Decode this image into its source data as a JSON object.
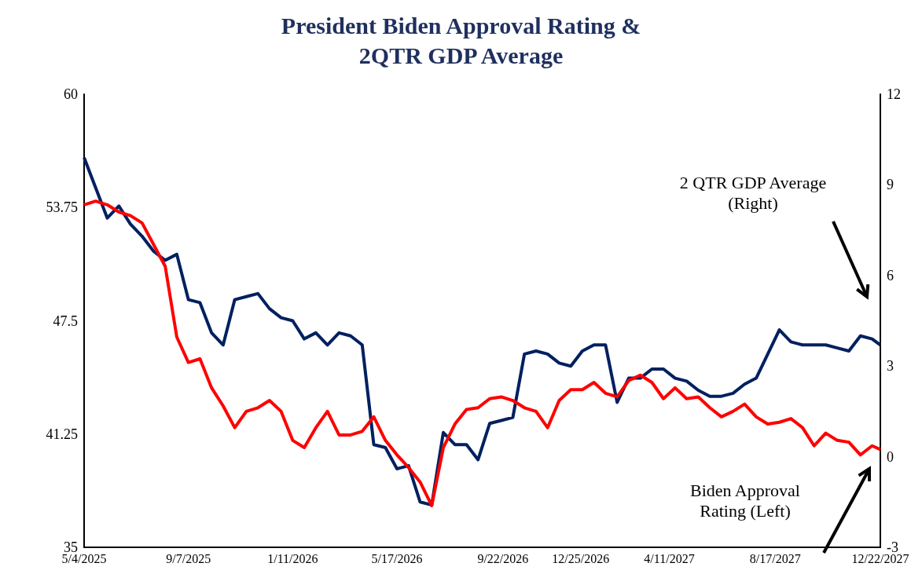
{
  "chart_data": {
    "type": "line",
    "title": "President Biden Approval Rating &\n2QTR GDP Average",
    "x": [
      "2025-05-04",
      "2025-05-18",
      "2025-06-01",
      "2025-06-15",
      "2025-06-29",
      "2025-07-13",
      "2025-07-27",
      "2025-08-10",
      "2025-08-24",
      "2025-09-07",
      "2025-09-21",
      "2025-10-05",
      "2025-10-19",
      "2025-11-02",
      "2025-11-16",
      "2025-11-30",
      "2025-12-14",
      "2025-12-28",
      "2026-01-11",
      "2026-01-25",
      "2026-02-08",
      "2026-02-22",
      "2026-03-08",
      "2026-03-22",
      "2026-04-05",
      "2026-04-19",
      "2026-05-03",
      "2026-05-17",
      "2026-05-31",
      "2026-06-14",
      "2026-06-28",
      "2026-07-12",
      "2026-07-26",
      "2026-08-09",
      "2026-08-23",
      "2026-09-06",
      "2026-09-20",
      "2026-10-04",
      "2026-10-18",
      "2026-11-01",
      "2026-11-15",
      "2026-11-29",
      "2026-12-13",
      "2026-12-27",
      "2027-01-10",
      "2027-01-24",
      "2027-02-07",
      "2027-02-21",
      "2027-03-07",
      "2027-03-21",
      "2027-04-04",
      "2027-04-18",
      "2027-05-02",
      "2027-05-16",
      "2027-05-30",
      "2027-06-13",
      "2027-06-27",
      "2027-07-11",
      "2027-07-25",
      "2027-08-08",
      "2027-08-22",
      "2027-09-05",
      "2027-09-19",
      "2027-10-03",
      "2027-10-17",
      "2027-10-31",
      "2027-11-14",
      "2027-11-28",
      "2027-12-12",
      "2027-12-22"
    ],
    "series": [
      {
        "color": "#ff0000",
        "values": [
          53.9,
          54.1,
          53.9,
          53.5,
          53.3,
          52.9,
          51.7,
          50.5,
          46.6,
          45.2,
          45.4,
          43.8,
          42.8,
          41.6,
          42.5,
          42.7,
          43.1,
          42.5,
          40.9,
          40.5,
          41.6,
          42.5,
          41.2,
          41.2,
          41.4,
          42.2,
          40.9,
          40.1,
          39.4,
          38.6,
          37.3,
          40.5,
          41.8,
          42.6,
          42.7,
          43.2,
          43.3,
          43.1,
          42.7,
          42.5,
          41.6,
          43.1,
          43.7,
          43.7,
          44.1,
          43.5,
          43.3,
          44.2,
          44.5,
          44.1,
          43.2,
          43.8,
          43.2,
          43.3,
          42.7,
          42.2,
          42.5,
          42.9,
          42.2,
          41.8,
          41.9,
          42.1,
          41.6,
          40.6,
          41.3,
          40.9,
          40.8,
          40.1,
          40.6,
          40.4
        ]
      },
      {
        "color": "#002060",
        "axis": "y2",
        "values": [
          9.9,
          8.9,
          7.9,
          8.3,
          7.7,
          7.3,
          6.8,
          6.5,
          6.7,
          5.2,
          5.1,
          4.1,
          3.7,
          5.2,
          5.3,
          5.4,
          4.9,
          4.6,
          4.5,
          3.9,
          4.1,
          3.7,
          4.1,
          4.0,
          3.7,
          0.4,
          0.3,
          -0.4,
          -0.3,
          -1.5,
          -1.6,
          0.8,
          0.4,
          0.4,
          -0.1,
          1.1,
          1.2,
          1.3,
          3.4,
          3.5,
          3.4,
          3.1,
          3.0,
          3.5,
          3.7,
          3.7,
          1.8,
          2.6,
          2.6,
          2.9,
          2.9,
          2.6,
          2.5,
          2.2,
          2.0,
          2.0,
          2.1,
          2.4,
          2.6,
          3.4,
          4.2,
          3.8,
          3.7,
          3.7,
          3.7,
          3.6,
          3.5,
          4.0,
          3.9,
          3.7
        ]
      }
    ],
    "xlim": [
      "2025-05-04",
      "2027-12-22"
    ],
    "xticks": [
      {
        "value": "2025-05-04",
        "label": "5/4/2025"
      },
      {
        "value": "2025-09-07",
        "label": "9/7/2025"
      },
      {
        "value": "2026-01-11",
        "label": "1/11/2026"
      },
      {
        "value": "2026-05-17",
        "label": "5/17/2026"
      },
      {
        "value": "2026-09-22",
        "label": "9/22/2026"
      },
      {
        "value": "2026-12-25",
        "label": "12/25/2026"
      },
      {
        "value": "2027-04-11",
        "label": "4/11/2027"
      },
      {
        "value": "2027-08-17",
        "label": "8/17/2027"
      },
      {
        "value": "2027-12-22",
        "label": "12/22/2027"
      }
    ],
    "ylim": [
      35,
      60
    ],
    "yticks": [
      35,
      41.25,
      47.5,
      53.75,
      60
    ],
    "y2lim": [
      -3,
      12
    ],
    "y2ticks": [
      -3,
      0,
      3,
      6,
      9,
      12
    ],
    "annotations": [
      "2 QTR GDP Average\n(Right)",
      "Biden Approval\nRating (Left)"
    ]
  }
}
